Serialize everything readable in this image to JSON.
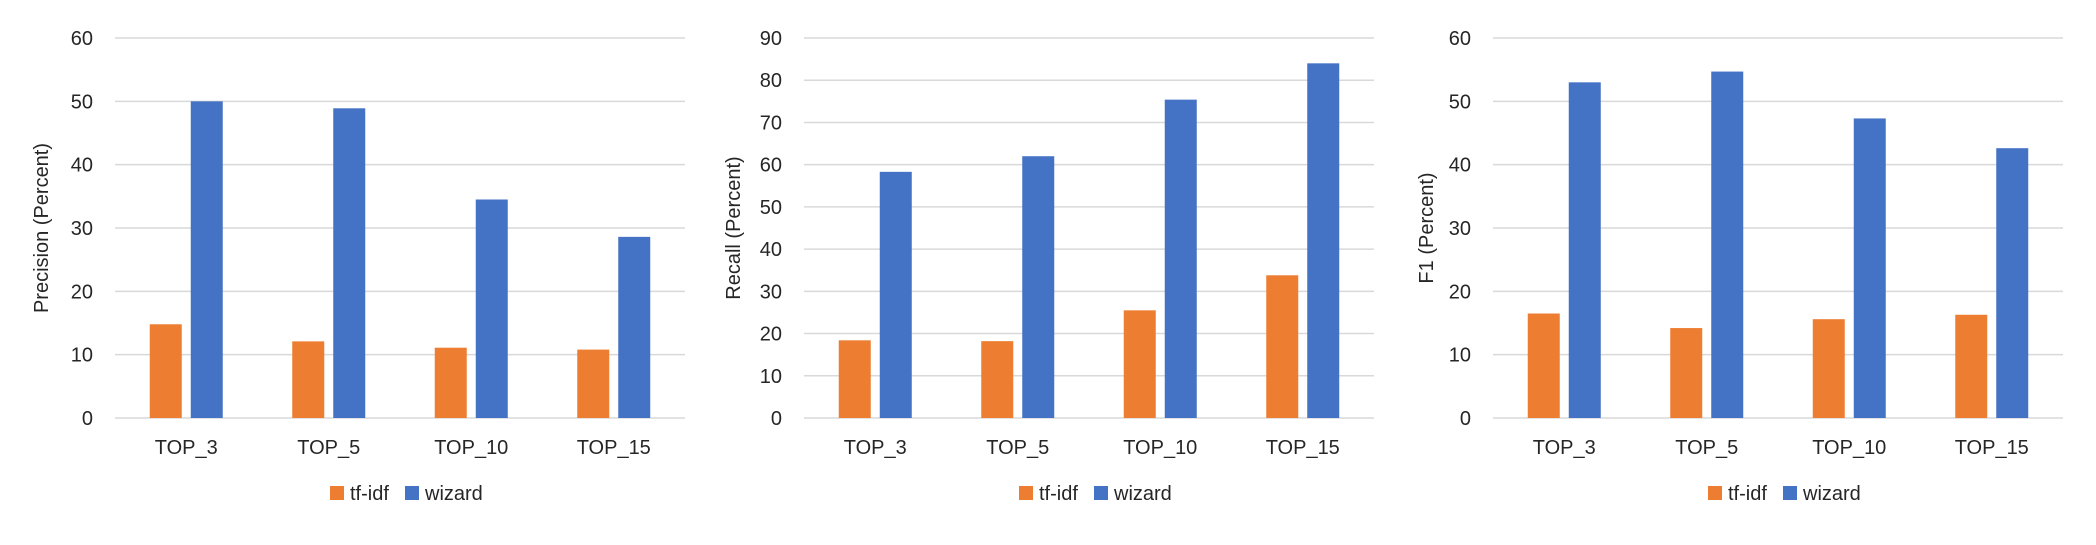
{
  "colors": {
    "tfidf": "#ED7D31",
    "wizard": "#4472C4",
    "grid": "#D9D9D9",
    "text": "#262626"
  },
  "chart_data": [
    {
      "type": "bar",
      "title": "",
      "xlabel": "",
      "ylabel": "Precision (Percent)",
      "ylim": [
        0,
        60
      ],
      "yticks": [
        0,
        10,
        20,
        30,
        40,
        50,
        60
      ],
      "grid": true,
      "legend": "bottom-center",
      "categories": [
        "TOP_3",
        "TOP_5",
        "TOP_10",
        "TOP_15"
      ],
      "series": [
        {
          "name": "tf-idf",
          "values": [
            14.8,
            12.1,
            11.1,
            10.8
          ]
        },
        {
          "name": "wizard",
          "values": [
            50.0,
            48.9,
            34.5,
            28.6
          ]
        }
      ]
    },
    {
      "type": "bar",
      "title": "",
      "xlabel": "",
      "ylabel": "Recall (Percent)",
      "ylim": [
        0,
        90
      ],
      "yticks": [
        0,
        10,
        20,
        30,
        40,
        50,
        60,
        70,
        80,
        90
      ],
      "grid": true,
      "legend": "bottom-center",
      "categories": [
        "TOP_3",
        "TOP_5",
        "TOP_10",
        "TOP_15"
      ],
      "series": [
        {
          "name": "tf-idf",
          "values": [
            18.4,
            18.2,
            25.5,
            33.8
          ]
        },
        {
          "name": "wizard",
          "values": [
            58.3,
            62.0,
            75.4,
            84.0
          ]
        }
      ]
    },
    {
      "type": "bar",
      "title": "",
      "xlabel": "",
      "ylabel": "F1 (Percent)",
      "ylim": [
        0,
        60
      ],
      "yticks": [
        0,
        10,
        20,
        30,
        40,
        50,
        60
      ],
      "grid": true,
      "legend": "bottom-center",
      "categories": [
        "TOP_3",
        "TOP_5",
        "TOP_10",
        "TOP_15"
      ],
      "series": [
        {
          "name": "tf-idf",
          "values": [
            16.5,
            14.2,
            15.6,
            16.3
          ]
        },
        {
          "name": "wizard",
          "values": [
            53.0,
            54.7,
            47.3,
            42.6
          ]
        }
      ]
    }
  ]
}
